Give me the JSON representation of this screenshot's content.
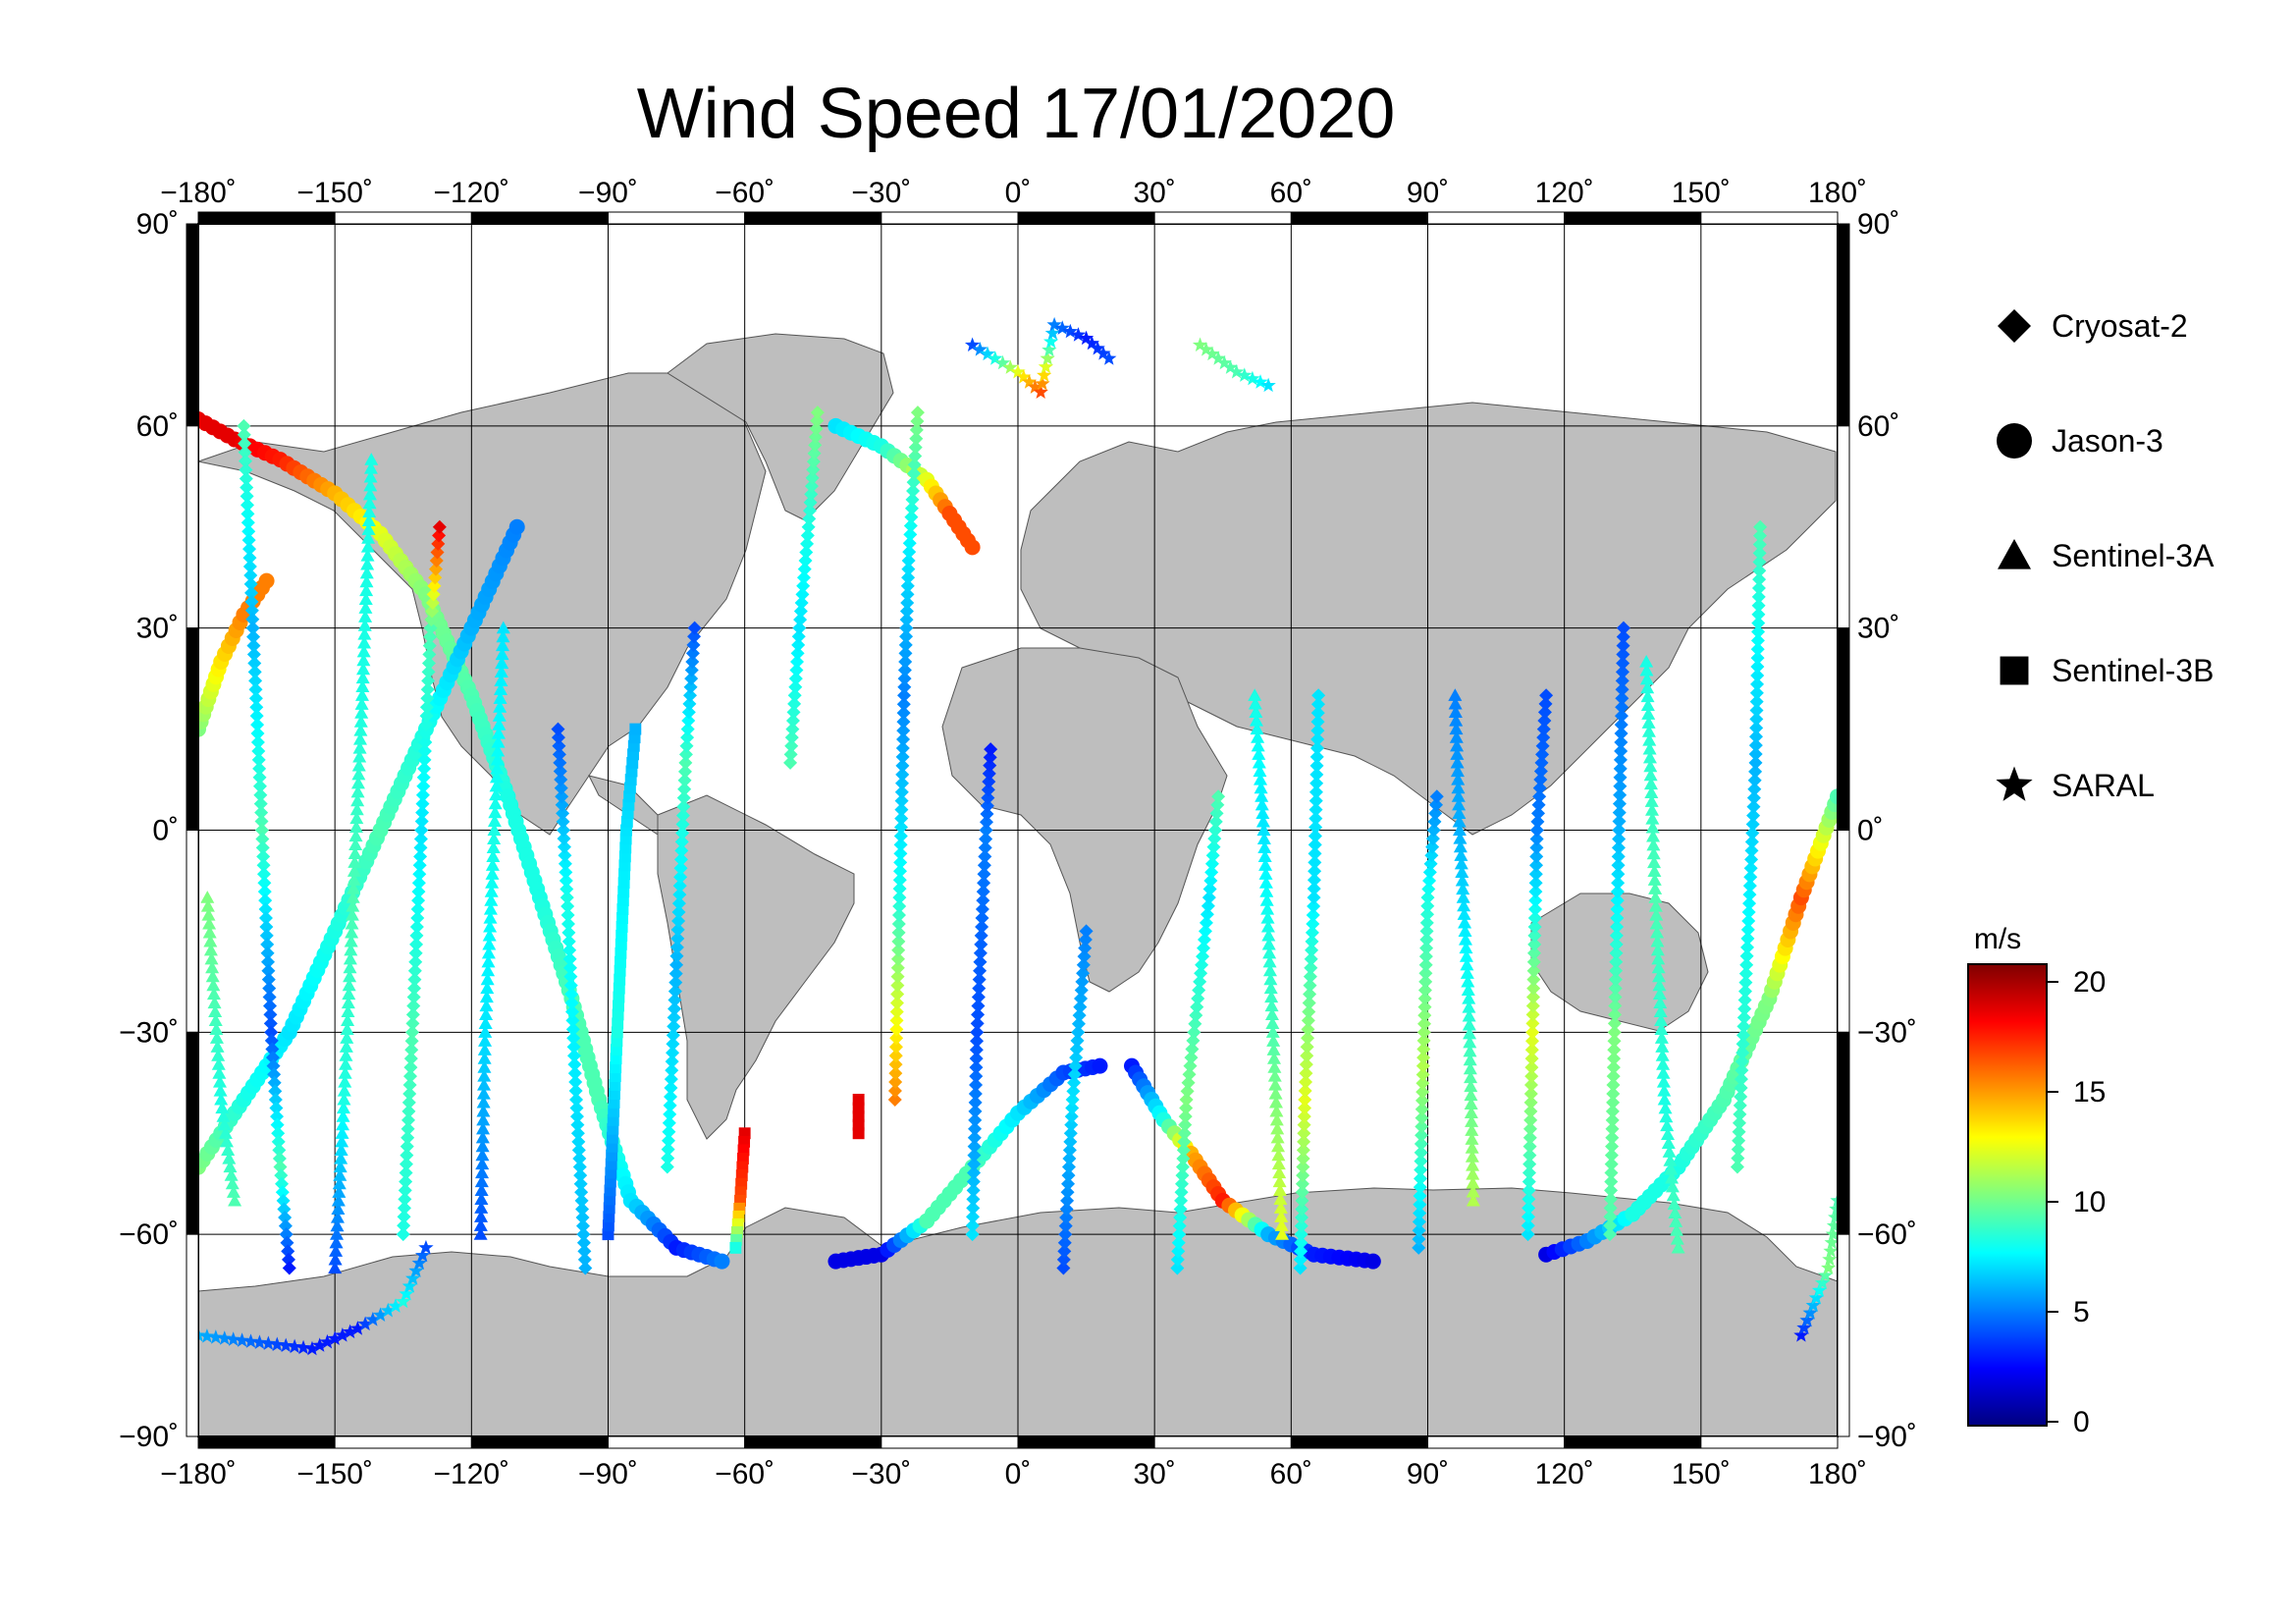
{
  "title": "Wind Speed 17/01/2020",
  "map": {
    "projection": "equirectangular",
    "lon_range": [
      -180,
      180
    ],
    "lat_range": [
      -90,
      90
    ],
    "grid_step_lon": 30,
    "grid_step_lat": 30,
    "land_color": "#bebebe",
    "ocean_color": "#ffffff",
    "lon_ticks": [
      "−180˚",
      "−150˚",
      "−120˚",
      "−90˚",
      "−60˚",
      "−30˚",
      "0˚",
      "30˚",
      "60˚",
      "90˚",
      "120˚",
      "150˚",
      "180˚"
    ],
    "lat_ticks": [
      "90˚",
      "60˚",
      "30˚",
      "0˚",
      "−30˚",
      "−60˚",
      "−90˚"
    ]
  },
  "legend": {
    "items": [
      {
        "label": "Cryosat-2",
        "symbol": "diamond"
      },
      {
        "label": "Jason-3",
        "symbol": "circle"
      },
      {
        "label": "Sentinel-3A",
        "symbol": "triangle"
      },
      {
        "label": "Sentinel-3B",
        "symbol": "square"
      },
      {
        "label": "SARAL",
        "symbol": "star"
      }
    ]
  },
  "colorbar": {
    "unit": "m/s",
    "range": [
      0,
      20
    ],
    "ticks": [
      "20",
      "15",
      "10",
      "5",
      "0"
    ],
    "colors": [
      "#00007f",
      "#0000ff",
      "#007fff",
      "#00ffff",
      "#7fff7f",
      "#ffff00",
      "#ff7f00",
      "#ff0000",
      "#7f0000"
    ]
  },
  "chart_data": {
    "type": "scatter",
    "xlabel": "",
    "ylabel": "",
    "xlim": [
      -180,
      180
    ],
    "ylim": [
      -90,
      90
    ],
    "tracks": [
      {
        "satellite": "Jason-3",
        "points": [
          [
            -180,
            61,
            18
          ],
          [
            -172,
            58,
            18
          ],
          [
            -162,
            55,
            17
          ],
          [
            -150,
            50,
            14
          ],
          [
            -140,
            44,
            12
          ],
          [
            -130,
            35,
            10
          ],
          [
            -120,
            20,
            9
          ],
          [
            -112,
            5,
            8
          ],
          [
            -105,
            -10,
            8
          ],
          [
            -98,
            -25,
            9
          ],
          [
            -92,
            -40,
            9
          ],
          [
            -85,
            -55,
            7
          ],
          [
            -75,
            -62,
            3
          ],
          [
            -65,
            -64,
            5
          ]
        ]
      },
      {
        "satellite": "Jason-3",
        "points": [
          [
            -180,
            -50,
            10
          ],
          [
            -170,
            -40,
            8
          ],
          [
            -160,
            -30,
            7
          ],
          [
            -150,
            -15,
            8
          ],
          [
            -140,
            0,
            9
          ],
          [
            -130,
            15,
            8
          ],
          [
            -120,
            30,
            6
          ],
          [
            -110,
            45,
            5
          ]
        ]
      },
      {
        "satellite": "Jason-3",
        "points": [
          [
            -180,
            15,
            10
          ],
          [
            -175,
            25,
            13
          ],
          [
            -170,
            32,
            15
          ],
          [
            -165,
            37,
            15
          ]
        ]
      },
      {
        "satellite": "Jason-3",
        "points": [
          [
            -40,
            -64,
            2
          ],
          [
            -30,
            -63,
            2
          ],
          [
            -20,
            -58,
            9
          ],
          [
            -10,
            -50,
            9
          ],
          [
            0,
            -42,
            7
          ],
          [
            10,
            -36,
            4
          ],
          [
            18,
            -35,
            3
          ]
        ]
      },
      {
        "satellite": "Jason-3",
        "points": [
          [
            -40,
            60,
            7
          ],
          [
            -30,
            57,
            8
          ],
          [
            -20,
            52,
            12
          ],
          [
            -15,
            47,
            16
          ],
          [
            -10,
            42,
            16
          ]
        ]
      },
      {
        "satellite": "Jason-3",
        "points": [
          [
            25,
            -35,
            3
          ],
          [
            32,
            -43,
            8
          ],
          [
            38,
            -48,
            14
          ],
          [
            45,
            -55,
            17
          ],
          [
            55,
            -60,
            6
          ],
          [
            65,
            -63,
            3
          ],
          [
            78,
            -64,
            2
          ]
        ]
      },
      {
        "satellite": "Jason-3",
        "points": [
          [
            116,
            -63,
            2
          ],
          [
            125,
            -61,
            5
          ],
          [
            135,
            -57,
            8
          ],
          [
            145,
            -50,
            8
          ],
          [
            155,
            -40,
            9
          ],
          [
            165,
            -25,
            10
          ],
          [
            172,
            -10,
            16
          ],
          [
            180,
            5,
            9
          ]
        ]
      },
      {
        "satellite": "Cryosat-2",
        "points": [
          [
            -170,
            60,
            9
          ],
          [
            -168,
            30,
            6
          ],
          [
            -166,
            0,
            9
          ],
          [
            -164,
            -30,
            4
          ],
          [
            -162,
            -50,
            9
          ],
          [
            -160,
            -65,
            3
          ]
        ]
      },
      {
        "satellite": "Cryosat-2",
        "points": [
          [
            -135,
            -60,
            8
          ],
          [
            -133,
            -30,
            9
          ],
          [
            -131,
            0,
            7
          ],
          [
            -129,
            30,
            9
          ],
          [
            -127,
            45,
            18
          ]
        ]
      },
      {
        "satellite": "Cryosat-2",
        "points": [
          [
            -95,
            -65,
            6
          ],
          [
            -97,
            -40,
            7
          ],
          [
            -99,
            -10,
            8
          ],
          [
            -101,
            15,
            4
          ]
        ]
      },
      {
        "satellite": "Cryosat-2",
        "points": [
          [
            -77,
            -50,
            8
          ],
          [
            -75,
            -20,
            6
          ],
          [
            -73,
            10,
            9
          ],
          [
            -71,
            30,
            4
          ]
        ]
      },
      {
        "satellite": "Cryosat-2",
        "points": [
          [
            -50,
            10,
            9
          ],
          [
            -48,
            30,
            7
          ],
          [
            -46,
            45,
            8
          ],
          [
            -44,
            62,
            10
          ]
        ]
      },
      {
        "satellite": "Cryosat-2",
        "points": [
          [
            -27,
            -40,
            15
          ],
          [
            -26,
            -10,
            8
          ],
          [
            -25,
            20,
            5
          ],
          [
            -24,
            40,
            7
          ],
          [
            -22,
            62,
            10
          ]
        ]
      },
      {
        "satellite": "Cryosat-2",
        "points": [
          [
            -10,
            -60,
            7
          ],
          [
            -9,
            -30,
            4
          ],
          [
            -7,
            0,
            5
          ],
          [
            -6,
            12,
            3
          ]
        ]
      },
      {
        "satellite": "Cryosat-2",
        "points": [
          [
            10,
            -65,
            4
          ],
          [
            12,
            -40,
            7
          ],
          [
            15,
            -15,
            5
          ]
        ]
      },
      {
        "satellite": "Cryosat-2",
        "points": [
          [
            35,
            -65,
            7
          ],
          [
            37,
            -40,
            10
          ],
          [
            42,
            -10,
            7
          ],
          [
            44,
            5,
            9
          ]
        ]
      },
      {
        "satellite": "Cryosat-2",
        "points": [
          [
            62,
            -65,
            7
          ],
          [
            63,
            -40,
            12
          ],
          [
            65,
            -10,
            7
          ],
          [
            66,
            20,
            7
          ]
        ]
      },
      {
        "satellite": "Cryosat-2",
        "points": [
          [
            88,
            -62,
            6
          ],
          [
            89,
            -35,
            11
          ],
          [
            90,
            -10,
            8
          ],
          [
            92,
            5,
            5
          ]
        ]
      },
      {
        "satellite": "Cryosat-2",
        "points": [
          [
            112,
            -60,
            7
          ],
          [
            113,
            -30,
            12
          ],
          [
            114,
            0,
            5
          ],
          [
            116,
            20,
            4
          ]
        ]
      },
      {
        "satellite": "Cryosat-2",
        "points": [
          [
            130,
            -60,
            9
          ],
          [
            131,
            -30,
            10
          ],
          [
            132,
            0,
            6
          ],
          [
            133,
            30,
            4
          ]
        ]
      },
      {
        "satellite": "Cryosat-2",
        "points": [
          [
            158,
            -50,
            9
          ],
          [
            160,
            -20,
            8
          ],
          [
            162,
            10,
            6
          ],
          [
            163,
            45,
            9
          ]
        ]
      },
      {
        "satellite": "Sentinel-3A",
        "points": [
          [
            -178,
            -10,
            10
          ],
          [
            -175,
            -40,
            8
          ],
          [
            -172,
            -55,
            9
          ]
        ]
      },
      {
        "satellite": "Sentinel-3A",
        "points": [
          [
            -150,
            -65,
            4
          ],
          [
            -148,
            -40,
            8
          ],
          [
            -146,
            -10,
            9
          ],
          [
            -144,
            20,
            8
          ],
          [
            -142,
            55,
            8
          ]
        ]
      },
      {
        "satellite": "Sentinel-3A",
        "points": [
          [
            -118,
            -60,
            4
          ],
          [
            -117,
            -30,
            7
          ],
          [
            -115,
            0,
            8
          ],
          [
            -113,
            30,
            7
          ]
        ]
      },
      {
        "satellite": "Sentinel-3A",
        "points": [
          [
            58,
            -60,
            12
          ],
          [
            56,
            -30,
            9
          ],
          [
            54,
            0,
            7
          ],
          [
            52,
            20,
            8
          ]
        ]
      },
      {
        "satellite": "Sentinel-3A",
        "points": [
          [
            100,
            -55,
            11
          ],
          [
            99,
            -25,
            8
          ],
          [
            97,
            0,
            6
          ],
          [
            96,
            20,
            5
          ]
        ]
      },
      {
        "satellite": "Sentinel-3A",
        "points": [
          [
            145,
            -62,
            9
          ],
          [
            142,
            -40,
            8
          ],
          [
            140,
            -10,
            9
          ],
          [
            138,
            25,
            8
          ]
        ]
      },
      {
        "satellite": "Sentinel-3B",
        "points": [
          [
            -60,
            -45,
            18
          ],
          [
            -61,
            -55,
            16
          ],
          [
            -62,
            -62,
            8
          ]
        ]
      },
      {
        "satellite": "Sentinel-3B",
        "points": [
          [
            -35,
            -40,
            18
          ],
          [
            -35,
            -45,
            18
          ]
        ]
      },
      {
        "satellite": "Sentinel-3B",
        "points": [
          [
            -90,
            -60,
            4
          ],
          [
            -88,
            -30,
            8
          ],
          [
            -86,
            0,
            7
          ],
          [
            -84,
            15,
            6
          ]
        ]
      },
      {
        "satellite": "SARAL",
        "points": [
          [
            -180,
            -75,
            6
          ],
          [
            -155,
            -77,
            3
          ],
          [
            -145,
            -74,
            3
          ],
          [
            -135,
            -70,
            8
          ],
          [
            -130,
            -62,
            4
          ]
        ]
      },
      {
        "satellite": "SARAL",
        "points": [
          [
            -10,
            72,
            4
          ],
          [
            0,
            68,
            12
          ],
          [
            5,
            65,
            16
          ],
          [
            8,
            75,
            5
          ],
          [
            15,
            73,
            3
          ],
          [
            20,
            70,
            4
          ]
        ]
      },
      {
        "satellite": "SARAL",
        "points": [
          [
            40,
            72,
            10
          ],
          [
            48,
            68,
            9
          ],
          [
            55,
            66,
            7
          ]
        ]
      },
      {
        "satellite": "SARAL",
        "points": [
          [
            172,
            -75,
            3
          ],
          [
            178,
            -65,
            10
          ],
          [
            180,
            -55,
            9
          ]
        ]
      }
    ]
  }
}
